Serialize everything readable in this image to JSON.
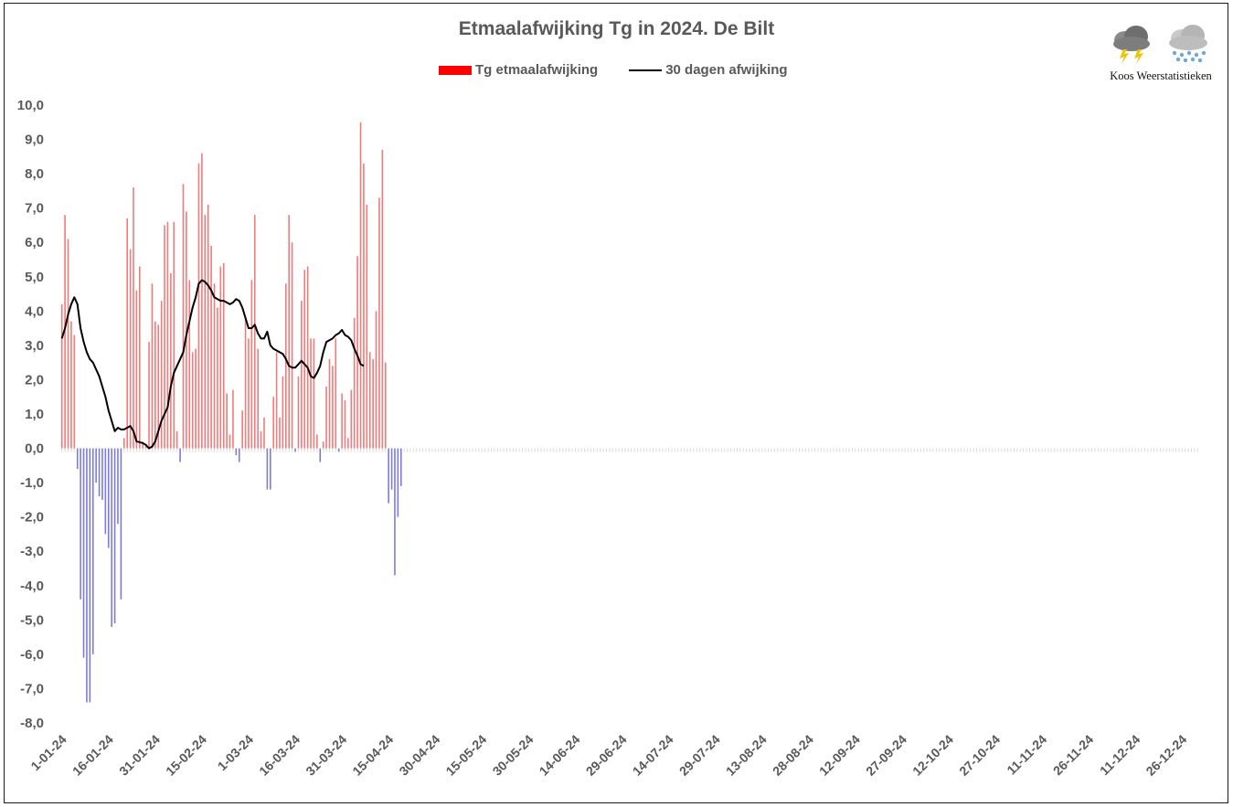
{
  "brand": {
    "label": "Koos Weerstatistieken"
  },
  "chart_data": {
    "type": "bar",
    "title": "Etmaalafwijking Tg in 2024. De Bilt",
    "xlabel": "",
    "ylabel": "",
    "ylim": [
      -8.0,
      10.0
    ],
    "yticks": [
      "10,0",
      "9,0",
      "8,0",
      "7,0",
      "6,0",
      "5,0",
      "4,0",
      "3,0",
      "2,0",
      "1,0",
      "0,0",
      "-1,0",
      "-2,0",
      "-3,0",
      "-4,0",
      "-5,0",
      "-6,0",
      "-7,0",
      "-8,0"
    ],
    "xticks": [
      "1-01-24",
      "16-01-24",
      "31-01-24",
      "15-02-24",
      "1-03-24",
      "16-03-24",
      "31-03-24",
      "15-04-24",
      "30-04-24",
      "15-05-24",
      "30-05-24",
      "14-06-24",
      "29-06-24",
      "14-07-24",
      "29-07-24",
      "13-08-24",
      "28-08-24",
      "12-09-24",
      "27-09-24",
      "12-10-24",
      "27-10-24",
      "11-11-24",
      "26-11-24",
      "11-12-24",
      "26-12-24"
    ],
    "x_start": "1-01-24",
    "days_in_year": 366,
    "legend_position": "top",
    "colors": {
      "positive": "#ef7b7b",
      "negative": "#7b7be0",
      "average": "#000000",
      "legend_bar": "#ff0000"
    },
    "series": [
      {
        "name": "Tg etmaalafwijking",
        "values": [
          4.2,
          6.8,
          6.1,
          3.7,
          3.3,
          -0.6,
          -4.4,
          -6.1,
          -7.4,
          -7.4,
          -6.0,
          -1.0,
          -1.4,
          -1.5,
          -2.5,
          -2.9,
          -5.2,
          -5.1,
          -2.2,
          -4.4,
          0.3,
          6.7,
          5.8,
          7.6,
          4.6,
          5.3,
          0.2,
          0.1,
          3.1,
          4.8,
          3.7,
          3.6,
          4.3,
          6.5,
          6.6,
          5.1,
          6.6,
          0.5,
          -0.4,
          7.7,
          6.9,
          4.9,
          2.8,
          2.9,
          8.3,
          8.6,
          6.8,
          7.1,
          5.9,
          4.8,
          4.1,
          5.3,
          5.4,
          1.6,
          0.4,
          1.7,
          -0.2,
          -0.4,
          1.1,
          3.8,
          3.2,
          4.9,
          6.8,
          2.9,
          0.5,
          0.9,
          -1.2,
          -1.2,
          1.5,
          2.8,
          0.9,
          2.1,
          4.8,
          6.8,
          6.0,
          -0.1,
          2.1,
          4.3,
          5.2,
          5.3,
          3.2,
          3.2,
          0.4,
          -0.4,
          0.2,
          1.8,
          2.6,
          2.4,
          3.2,
          -0.1,
          1.6,
          1.4,
          0.3,
          1.7,
          3.8,
          5.6,
          9.5,
          8.3,
          7.1,
          2.8,
          2.6,
          4.0,
          7.3,
          8.7,
          2.5,
          -1.6,
          -1.2,
          -3.7,
          -2.0,
          -1.1
        ]
      },
      {
        "name": "30 dagen afwijking",
        "values": [
          3.2,
          3.5,
          3.9,
          4.2,
          4.4,
          4.2,
          3.5,
          3.1,
          2.8,
          2.6,
          2.5,
          2.3,
          2.1,
          1.8,
          1.5,
          1.1,
          0.8,
          0.5,
          0.6,
          0.55,
          0.55,
          0.6,
          0.65,
          0.5,
          0.2,
          0.18,
          0.15,
          0.1,
          0.0,
          0.05,
          0.2,
          0.5,
          0.8,
          1.0,
          1.2,
          1.8,
          2.2,
          2.4,
          2.6,
          2.8,
          3.3,
          3.7,
          4.1,
          4.4,
          4.8,
          4.9,
          4.85,
          4.75,
          4.6,
          4.4,
          4.35,
          4.3,
          4.3,
          4.25,
          4.2,
          4.25,
          4.35,
          4.3,
          4.1,
          3.8,
          3.5,
          3.5,
          3.6,
          3.35,
          3.2,
          3.2,
          3.4,
          3.0,
          2.9,
          2.85,
          2.8,
          2.75,
          2.6,
          2.4,
          2.35,
          2.35,
          2.45,
          2.55,
          2.45,
          2.35,
          2.1,
          2.05,
          2.2,
          2.4,
          2.8,
          3.1,
          3.15,
          3.2,
          3.3,
          3.35,
          3.45,
          3.3,
          3.25,
          3.15,
          2.9,
          2.7,
          2.45,
          2.4
        ]
      }
    ]
  }
}
